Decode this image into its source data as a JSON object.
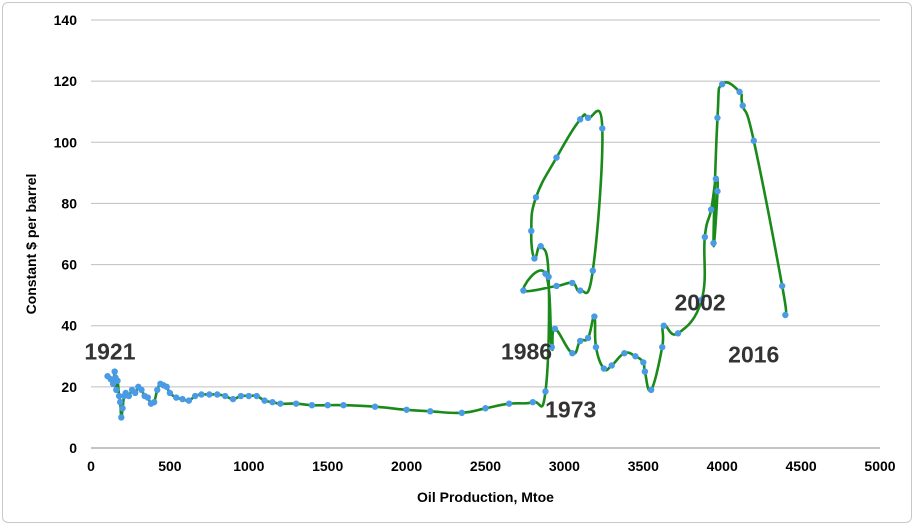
{
  "chart_data": {
    "type": "line",
    "title": "",
    "xlabel": "Oil Production, Mtoe",
    "ylabel": "Constant $ per barrel",
    "xlim": [
      0,
      5000
    ],
    "ylim": [
      0,
      140
    ],
    "xticks": [
      0,
      500,
      1000,
      1500,
      2000,
      2500,
      3000,
      3500,
      4000,
      4500,
      5000
    ],
    "yticks": [
      0,
      20,
      40,
      60,
      80,
      100,
      120,
      140
    ],
    "grid": "horizontal",
    "legend": "none",
    "line_color": "#1a8a1a",
    "marker_color": "#4a9be6",
    "series": [
      {
        "points": [
          [
            105,
            23.5
          ],
          [
            125,
            22.5
          ],
          [
            140,
            21
          ],
          [
            150,
            25
          ],
          [
            155,
            23
          ],
          [
            160,
            19
          ],
          [
            168,
            22
          ],
          [
            178,
            17
          ],
          [
            185,
            15
          ],
          [
            192,
            10
          ],
          [
            200,
            13
          ],
          [
            210,
            17
          ],
          [
            220,
            18
          ],
          [
            240,
            17
          ],
          [
            260,
            19
          ],
          [
            280,
            18
          ],
          [
            300,
            20
          ],
          [
            320,
            19
          ],
          [
            340,
            17
          ],
          [
            360,
            16.5
          ],
          [
            380,
            14.5
          ],
          [
            400,
            15
          ],
          [
            420,
            19
          ],
          [
            440,
            21
          ],
          [
            460,
            20.5
          ],
          [
            480,
            20
          ],
          [
            500,
            18
          ],
          [
            540,
            16.5
          ],
          [
            580,
            16
          ],
          [
            620,
            15.5
          ],
          [
            660,
            17
          ],
          [
            700,
            17.5
          ],
          [
            750,
            17.5
          ],
          [
            800,
            17.5
          ],
          [
            850,
            17
          ],
          [
            900,
            16
          ],
          [
            950,
            17
          ],
          [
            1000,
            17
          ],
          [
            1050,
            17
          ],
          [
            1100,
            15.5
          ],
          [
            1150,
            15
          ],
          [
            1200,
            14.5
          ],
          [
            1300,
            14.5
          ],
          [
            1400,
            14
          ],
          [
            1500,
            14
          ],
          [
            1600,
            14
          ],
          [
            1800,
            13.5
          ],
          [
            2000,
            12.5
          ],
          [
            2150,
            12
          ],
          [
            2350,
            11.5
          ],
          [
            2500,
            13
          ],
          [
            2650,
            14.5
          ],
          [
            2800,
            15
          ],
          [
            2880,
            18.5
          ],
          [
            2900,
            56
          ],
          [
            2850,
            66
          ],
          [
            2810,
            62
          ],
          [
            2790,
            71
          ],
          [
            2820,
            82
          ],
          [
            2950,
            95
          ],
          [
            3100,
            107.5
          ],
          [
            3150,
            108
          ],
          [
            3240,
            104.5
          ],
          [
            3180,
            58
          ],
          [
            3100,
            51.5
          ],
          [
            3050,
            54
          ],
          [
            2950,
            53
          ],
          [
            2740,
            51.5
          ],
          [
            2880,
            57
          ],
          [
            2920,
            33
          ],
          [
            2940,
            39
          ],
          [
            3050,
            31
          ],
          [
            3100,
            35
          ],
          [
            3150,
            36
          ],
          [
            3190,
            43
          ],
          [
            3200,
            33
          ],
          [
            3250,
            26
          ],
          [
            3300,
            27
          ],
          [
            3380,
            31
          ],
          [
            3450,
            30
          ],
          [
            3500,
            28
          ],
          [
            3510,
            25
          ],
          [
            3550,
            19
          ],
          [
            3620,
            33
          ],
          [
            3630,
            40
          ],
          [
            3720,
            37.5
          ],
          [
            3870,
            48.5
          ],
          [
            3890,
            69
          ],
          [
            3930,
            78
          ],
          [
            3960,
            88
          ],
          [
            3970,
            84
          ],
          [
            3945,
            67
          ],
          [
            3970,
            108
          ],
          [
            4000,
            119
          ],
          [
            4110,
            116.5
          ],
          [
            4130,
            112
          ],
          [
            4200,
            100.5
          ],
          [
            4380,
            53
          ],
          [
            4400,
            43.5
          ]
        ]
      }
    ],
    "annotations": [
      {
        "label": "1921",
        "x": 120,
        "y": 29
      },
      {
        "label": "1986",
        "x": 2760,
        "y": 29
      },
      {
        "label": "1973",
        "x": 3040,
        "y": 10
      },
      {
        "label": "2002",
        "x": 3860,
        "y": 45
      },
      {
        "label": "2016",
        "x": 4200,
        "y": 28
      }
    ]
  }
}
